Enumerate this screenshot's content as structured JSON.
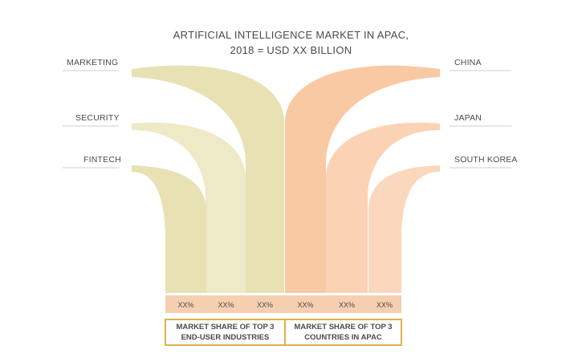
{
  "title": {
    "line1": "ARTIFICIAL INTELLIGENCE MARKET IN APAC,",
    "line2": "2018 = USD XX BILLION"
  },
  "left_labels": [
    "MARKETING",
    "SECURITY",
    "FINTECH"
  ],
  "right_labels": [
    "CHINA",
    "JAPAN",
    "SOUTH KOREA"
  ],
  "percentages": [
    "XX%",
    "XX%",
    "XX%",
    "XX%",
    "XX%",
    "XX%"
  ],
  "captions": {
    "left": [
      "MARKET SHARE OF TOP 3",
      "END-USER INDUSTRIES"
    ],
    "right": [
      "MARKET SHARE OF TOP 3",
      "COUNTRIES IN APAC"
    ]
  },
  "colors": {
    "industries": "#e8e1b4",
    "industries_light": "#eee9c6",
    "countries": "#f9c9a4",
    "countries_light": "#fbd8bd",
    "pct_row": "#f6cfb1",
    "box_border": "#e0b24a",
    "text": "#4a4a4a"
  }
}
